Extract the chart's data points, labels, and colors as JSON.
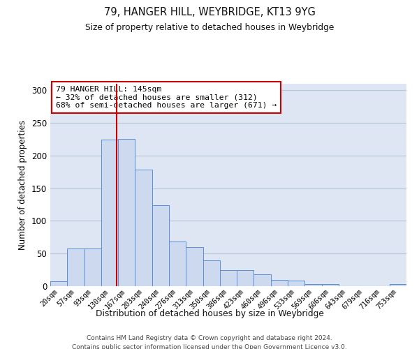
{
  "title": "79, HANGER HILL, WEYBRIDGE, KT13 9YG",
  "subtitle": "Size of property relative to detached houses in Weybridge",
  "xlabel": "Distribution of detached houses by size in Weybridge",
  "ylabel": "Number of detached properties",
  "bar_labels": [
    "20sqm",
    "57sqm",
    "93sqm",
    "130sqm",
    "167sqm",
    "203sqm",
    "240sqm",
    "276sqm",
    "313sqm",
    "350sqm",
    "386sqm",
    "423sqm",
    "460sqm",
    "496sqm",
    "533sqm",
    "569sqm",
    "606sqm",
    "643sqm",
    "679sqm",
    "716sqm",
    "753sqm"
  ],
  "bar_values": [
    7,
    58,
    58,
    225,
    226,
    179,
    124,
    68,
    60,
    40,
    25,
    25,
    18,
    10,
    9,
    3,
    3,
    0,
    0,
    0,
    3
  ],
  "bar_color": "#ccd9ee",
  "bar_edge_color": "#5b8dd9",
  "grid_color": "#b8c8dc",
  "background_color": "#dde6f2",
  "vline_color": "#cc0000",
  "annotation_text": "79 HANGER HILL: 145sqm\n← 32% of detached houses are smaller (312)\n68% of semi-detached houses are larger (671) →",
  "annotation_box_color": "#ffffff",
  "annotation_box_edge": "#cc0000",
  "ylim": [
    0,
    310
  ],
  "yticks": [
    0,
    50,
    100,
    150,
    200,
    250,
    300
  ],
  "footer_line1": "Contains HM Land Registry data © Crown copyright and database right 2024.",
  "footer_line2": "Contains public sector information licensed under the Open Government Licence v3.0."
}
